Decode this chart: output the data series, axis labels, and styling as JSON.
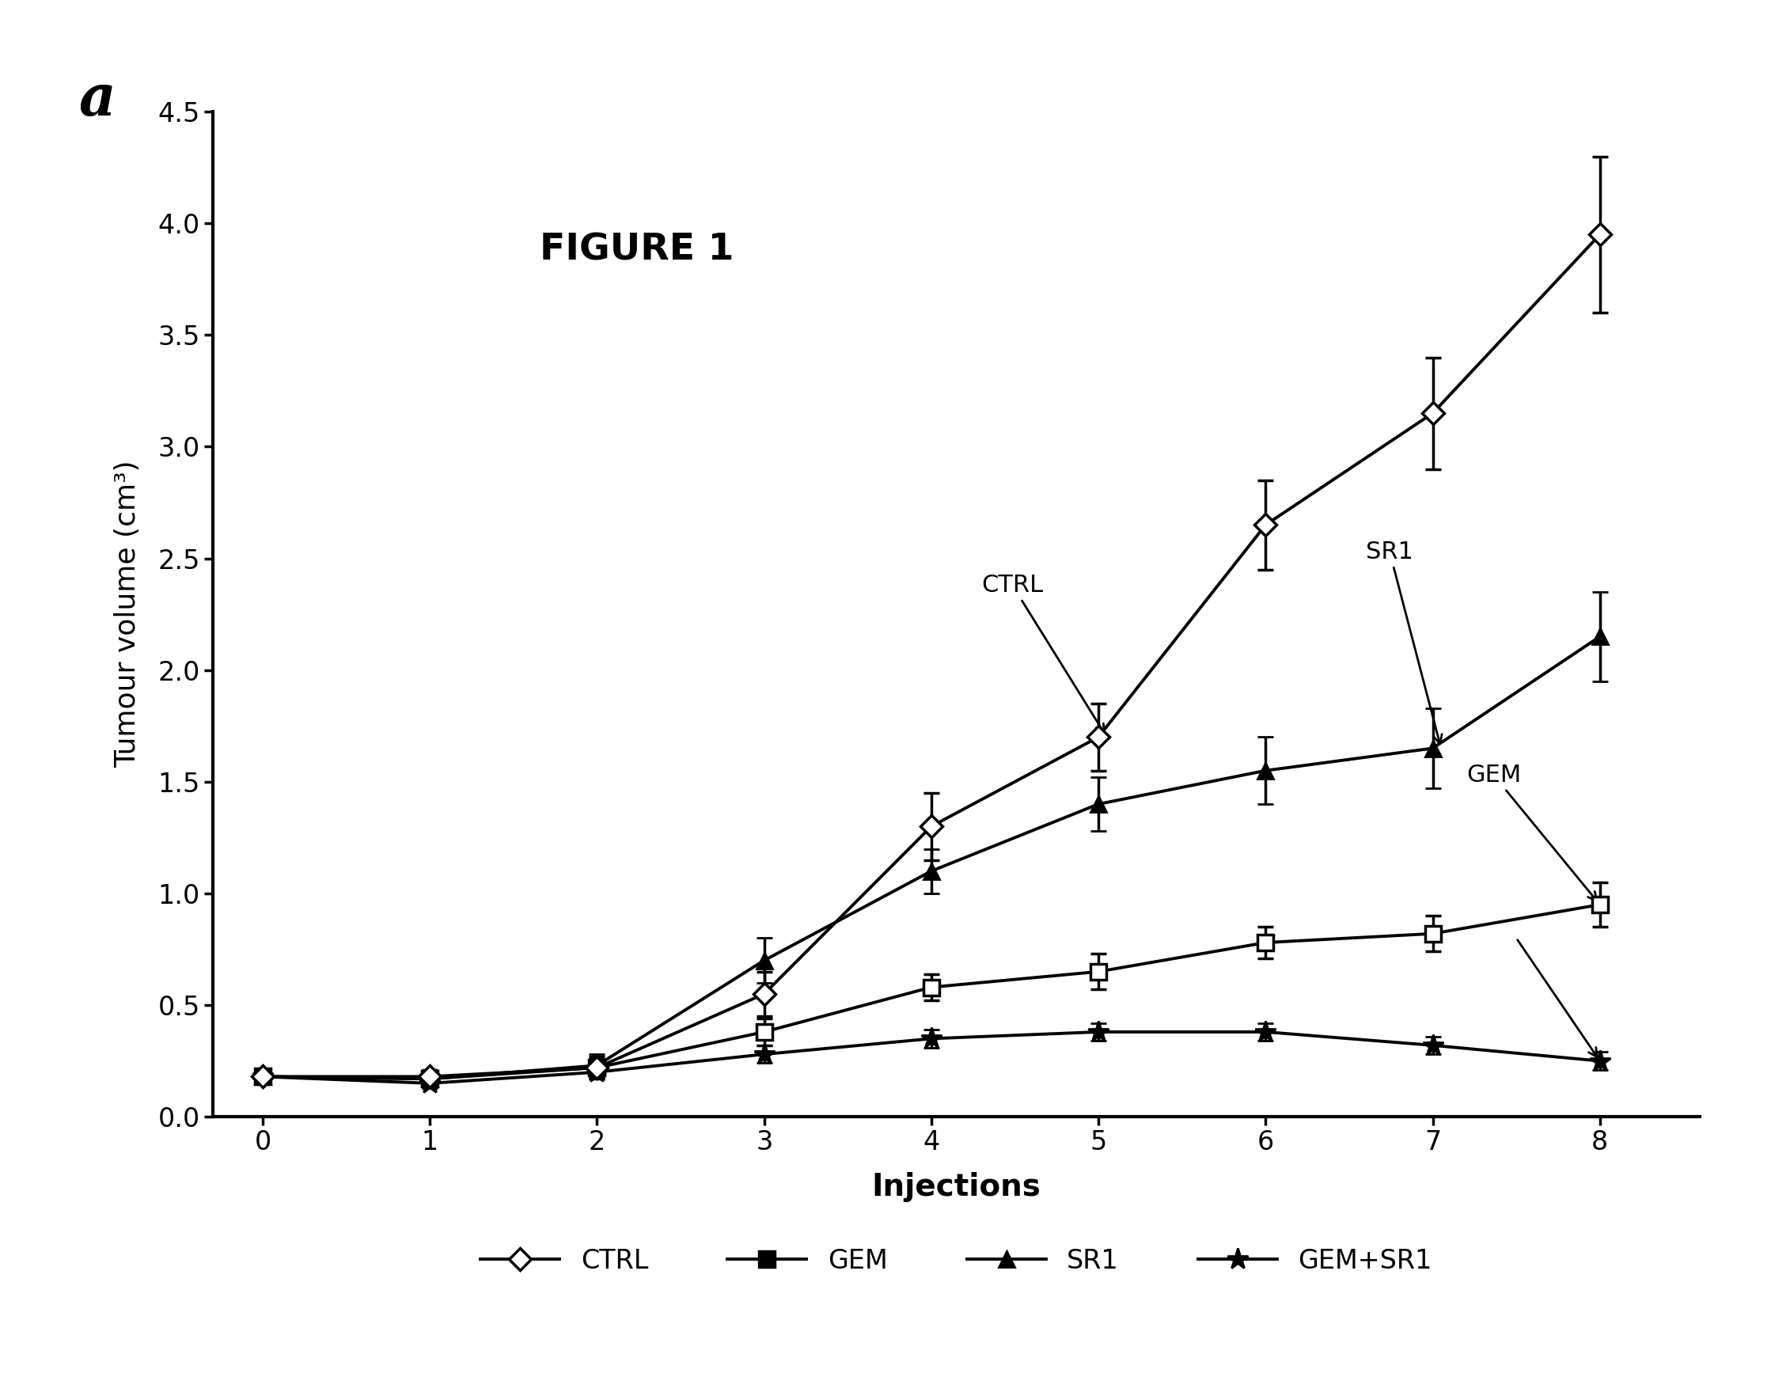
{
  "x": [
    0,
    1,
    2,
    3,
    4,
    5,
    6,
    7,
    8
  ],
  "ctrl_y": [
    0.18,
    0.18,
    0.22,
    0.55,
    1.3,
    1.7,
    2.65,
    3.15,
    3.95
  ],
  "ctrl_err": [
    0.03,
    0.03,
    0.05,
    0.1,
    0.15,
    0.15,
    0.2,
    0.25,
    0.35
  ],
  "gem_y": [
    0.18,
    0.17,
    0.22,
    0.38,
    0.58,
    0.65,
    0.78,
    0.82,
    0.95
  ],
  "gem_err": [
    0.03,
    0.03,
    0.04,
    0.06,
    0.06,
    0.08,
    0.07,
    0.08,
    0.1
  ],
  "sr1_y": [
    0.18,
    0.17,
    0.23,
    0.7,
    1.1,
    1.4,
    1.55,
    1.65,
    2.15
  ],
  "sr1_err": [
    0.03,
    0.03,
    0.05,
    0.1,
    0.1,
    0.12,
    0.15,
    0.18,
    0.2
  ],
  "gemsr1_y": [
    0.18,
    0.15,
    0.2,
    0.28,
    0.35,
    0.38,
    0.38,
    0.32,
    0.25
  ],
  "gemsr1_err": [
    0.02,
    0.02,
    0.03,
    0.04,
    0.04,
    0.04,
    0.04,
    0.04,
    0.04
  ],
  "xlabel": "Injections",
  "ylabel": "Tumour volume (cm³)",
  "panel_label": "a",
  "figure_label": "FIGURE 1",
  "ylim": [
    0,
    4.5
  ],
  "xlim": [
    -0.3,
    8.6
  ],
  "yticks": [
    0.0,
    0.5,
    1.0,
    1.5,
    2.0,
    2.5,
    3.0,
    3.5,
    4.0,
    4.5
  ],
  "xticks": [
    0,
    1,
    2,
    3,
    4,
    5,
    6,
    7,
    8
  ],
  "line_color": "#000000",
  "bg_color": "#ffffff"
}
